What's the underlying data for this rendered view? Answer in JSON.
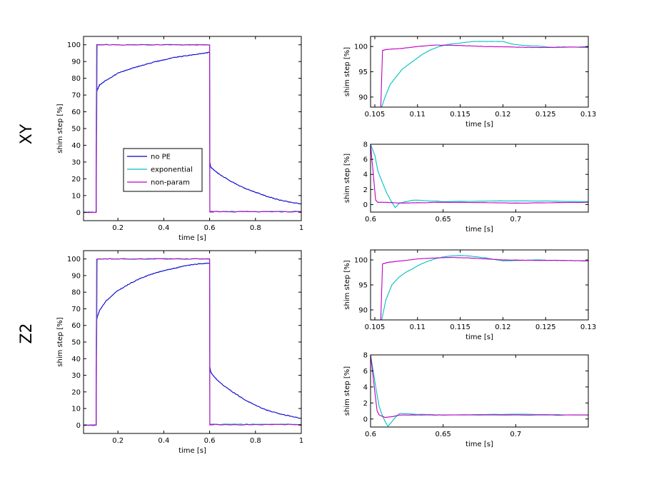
{
  "figure": {
    "row_labels": [
      "XY",
      "Z2"
    ],
    "colors": {
      "no_pe": "#0000cc",
      "exponential": "#00bfbf",
      "non_param": "#bf00bf"
    }
  },
  "chart_data": [
    {
      "id": "xy-main",
      "row": "XY",
      "type": "line",
      "title": "",
      "xlabel": "time [s]",
      "ylabel": "shim step [%]",
      "xlim": [
        0.05,
        1.0
      ],
      "ylim": [
        -5,
        105
      ],
      "xticks": [
        0.2,
        0.4,
        0.6,
        0.8,
        1
      ],
      "xtick_labels": [
        "0.2",
        "0.4",
        "0.6",
        "0.8",
        "1"
      ],
      "yticks": [
        0,
        10,
        20,
        30,
        40,
        50,
        60,
        70,
        80,
        90,
        100
      ],
      "ytick_labels": [
        "0",
        "10",
        "20",
        "30",
        "40",
        "50",
        "60",
        "70",
        "80",
        "90",
        "100"
      ],
      "legend": {
        "placement": "lower-left",
        "entries": [
          "no PE",
          "exponential",
          "non-param"
        ]
      },
      "series": [
        {
          "name": "no PE",
          "color": "#0000cc",
          "x": [
            0.05,
            0.105,
            0.106,
            0.11,
            0.12,
            0.15,
            0.2,
            0.25,
            0.3,
            0.35,
            0.4,
            0.45,
            0.5,
            0.55,
            0.6,
            0.601,
            0.605,
            0.62,
            0.65,
            0.7,
            0.75,
            0.8,
            0.85,
            0.9,
            0.95,
            1.0
          ],
          "y": [
            0,
            0,
            70,
            73,
            76,
            79,
            83,
            85.5,
            87.5,
            89.5,
            91,
            92.5,
            93.5,
            94.5,
            95.5,
            30,
            27,
            25,
            22,
            18,
            14.5,
            12,
            9.5,
            7.5,
            6,
            5
          ]
        },
        {
          "name": "exponential",
          "color": "#00bfbf",
          "x": [
            0.05,
            0.105,
            0.11,
            0.2,
            0.4,
            0.6,
            0.601,
            0.62,
            0.8,
            1.0
          ],
          "y": [
            0,
            0,
            100,
            100,
            100,
            100,
            0.5,
            0.5,
            0.5,
            0.5
          ]
        },
        {
          "name": "non-param",
          "color": "#bf00bf",
          "x": [
            0.05,
            0.105,
            0.107,
            0.2,
            0.4,
            0.6,
            0.601,
            0.62,
            0.8,
            1.0
          ],
          "y": [
            0,
            0,
            100,
            100,
            100,
            100,
            0.3,
            0.3,
            0.3,
            0.3
          ]
        }
      ]
    },
    {
      "id": "xy-rise",
      "row": "XY",
      "type": "line",
      "title": "",
      "xlabel": "time [s]",
      "ylabel": "shim step [%]",
      "xlim": [
        0.1045,
        0.13
      ],
      "ylim": [
        88,
        102
      ],
      "xticks": [
        0.105,
        0.11,
        0.115,
        0.12,
        0.125,
        0.13
      ],
      "xtick_labels": [
        "0.105",
        "0.11",
        "0.115",
        "0.12",
        "0.125",
        "0.13"
      ],
      "yticks": [
        90,
        95,
        100
      ],
      "ytick_labels": [
        "90",
        "95",
        "100"
      ],
      "series": [
        {
          "name": "exponential",
          "color": "#00bfbf",
          "x": [
            0.1058,
            0.1062,
            0.1068,
            0.1075,
            0.1082,
            0.109,
            0.1098,
            0.1106,
            0.1115,
            0.1125,
            0.1135,
            0.115,
            0.1165,
            0.118,
            0.12,
            0.121,
            0.1225,
            0.124,
            0.126,
            0.128,
            0.13
          ],
          "y": [
            88,
            90,
            92.5,
            94,
            95.5,
            96.5,
            97.5,
            98.5,
            99.3,
            100,
            100.4,
            100.7,
            101,
            101,
            101,
            100.5,
            100.2,
            100.1,
            99.8,
            99.9,
            99.8
          ]
        },
        {
          "name": "non-param",
          "color": "#bf00bf",
          "x": [
            0.1057,
            0.1059,
            0.1063,
            0.107,
            0.108,
            0.109,
            0.11,
            0.112,
            0.115,
            0.118,
            0.121,
            0.124,
            0.127,
            0.13
          ],
          "y": [
            88,
            99.2,
            99.4,
            99.5,
            99.6,
            99.8,
            100,
            100.3,
            100.2,
            100,
            99.9,
            99.8,
            99.9,
            99.9
          ]
        }
      ]
    },
    {
      "id": "xy-fall",
      "row": "XY",
      "type": "line",
      "title": "",
      "xlabel": "time [s]",
      "ylabel": "shim step [%]",
      "xlim": [
        0.6,
        0.75
      ],
      "ylim": [
        -1,
        8
      ],
      "xticks": [
        0.6,
        0.65,
        0.7
      ],
      "xtick_labels": [
        "0.6",
        "0.65",
        "0.7"
      ],
      "yticks": [
        0,
        2,
        4,
        6,
        8
      ],
      "ytick_labels": [
        "0",
        "2",
        "4",
        "6",
        "8"
      ],
      "series": [
        {
          "name": "exponential",
          "color": "#00bfbf",
          "x": [
            0.6,
            0.603,
            0.605,
            0.608,
            0.611,
            0.614,
            0.617,
            0.62,
            0.63,
            0.65,
            0.7,
            0.75
          ],
          "y": [
            8,
            6.5,
            4.5,
            3,
            1.6,
            0.5,
            -0.4,
            0.2,
            0.6,
            0.4,
            0.5,
            0.4
          ]
        },
        {
          "name": "non-param",
          "color": "#bf00bf",
          "x": [
            0.6,
            0.6035,
            0.605,
            0.61,
            0.62,
            0.65,
            0.7,
            0.75
          ],
          "y": [
            8,
            0.6,
            0.3,
            0.3,
            0.2,
            0.3,
            0.2,
            0.3
          ]
        }
      ]
    },
    {
      "id": "z2-main",
      "row": "Z2",
      "type": "line",
      "title": "",
      "xlabel": "time [s]",
      "ylabel": "shim step [%]",
      "xlim": [
        0.05,
        1.0
      ],
      "ylim": [
        -5,
        105
      ],
      "xticks": [
        0.2,
        0.4,
        0.6,
        0.8,
        1
      ],
      "xtick_labels": [
        "0.2",
        "0.4",
        "0.6",
        "0.8",
        "1"
      ],
      "yticks": [
        0,
        10,
        20,
        30,
        40,
        50,
        60,
        70,
        80,
        90,
        100
      ],
      "ytick_labels": [
        "0",
        "10",
        "20",
        "30",
        "40",
        "50",
        "60",
        "70",
        "80",
        "90",
        "100"
      ],
      "series": [
        {
          "name": "no PE",
          "color": "#0000cc",
          "x": [
            0.05,
            0.105,
            0.106,
            0.11,
            0.12,
            0.15,
            0.2,
            0.25,
            0.3,
            0.35,
            0.4,
            0.45,
            0.5,
            0.55,
            0.6,
            0.601,
            0.605,
            0.62,
            0.65,
            0.7,
            0.75,
            0.8,
            0.85,
            0.9,
            0.95,
            1.0
          ],
          "y": [
            0,
            0,
            62,
            65,
            69,
            75,
            81,
            85,
            88.5,
            91,
            93,
            94.5,
            96,
            97,
            97.5,
            35,
            32,
            29,
            25,
            20,
            15.5,
            12,
            9,
            7,
            5.5,
            4
          ]
        },
        {
          "name": "exponential",
          "color": "#00bfbf",
          "x": [
            0.05,
            0.105,
            0.11,
            0.2,
            0.4,
            0.6,
            0.601,
            0.62,
            0.8,
            1.0
          ],
          "y": [
            0,
            0,
            100,
            100,
            100,
            100,
            0.5,
            0.5,
            0.5,
            0.5
          ]
        },
        {
          "name": "non-param",
          "color": "#bf00bf",
          "x": [
            0.05,
            0.105,
            0.107,
            0.2,
            0.4,
            0.6,
            0.601,
            0.62,
            0.8,
            1.0
          ],
          "y": [
            0,
            0,
            100,
            100,
            100,
            100,
            0.3,
            0.3,
            0.3,
            0.3
          ]
        }
      ]
    },
    {
      "id": "z2-rise",
      "row": "Z2",
      "type": "line",
      "title": "",
      "xlabel": "time [s]",
      "ylabel": "shim step [%]",
      "xlim": [
        0.1045,
        0.13
      ],
      "ylim": [
        88,
        102
      ],
      "xticks": [
        0.105,
        0.11,
        0.115,
        0.12,
        0.125,
        0.13
      ],
      "xtick_labels": [
        "0.105",
        "0.11",
        "0.115",
        "0.12",
        "0.125",
        "0.13"
      ],
      "yticks": [
        90,
        95,
        100
      ],
      "ytick_labels": [
        "90",
        "95",
        "100"
      ],
      "series": [
        {
          "name": "exponential",
          "color": "#00bfbf",
          "x": [
            0.1058,
            0.1063,
            0.107,
            0.1078,
            0.1086,
            0.1094,
            0.1102,
            0.111,
            0.112,
            0.113,
            0.114,
            0.115,
            0.116,
            0.117,
            0.118,
            0.119,
            0.12,
            0.122,
            0.124,
            0.127,
            0.13
          ],
          "y": [
            88,
            92,
            95,
            96.5,
            97.5,
            98.2,
            99,
            99.6,
            100.2,
            100.6,
            100.8,
            100.9,
            100.8,
            100.6,
            100.4,
            100.1,
            99.8,
            99.9,
            100,
            99.9,
            99.8
          ]
        },
        {
          "name": "non-param",
          "color": "#bf00bf",
          "x": [
            0.1057,
            0.1059,
            0.1065,
            0.107,
            0.108,
            0.11,
            0.112,
            0.114,
            0.116,
            0.118,
            0.12,
            0.124,
            0.127,
            0.13
          ],
          "y": [
            88,
            99.2,
            99.5,
            99.6,
            99.8,
            100.2,
            100.4,
            100.5,
            100.4,
            100.2,
            100,
            99.9,
            99.9,
            99.8
          ]
        }
      ]
    },
    {
      "id": "z2-fall",
      "row": "Z2",
      "type": "line",
      "title": "",
      "xlabel": "time [s]",
      "ylabel": "shim step [%]",
      "xlim": [
        0.6,
        0.75
      ],
      "ylim": [
        -1,
        8
      ],
      "xticks": [
        0.6,
        0.65,
        0.7
      ],
      "xtick_labels": [
        "0.6",
        "0.65",
        "0.7"
      ],
      "yticks": [
        0,
        2,
        4,
        6,
        8
      ],
      "ytick_labels": [
        "0",
        "2",
        "4",
        "6",
        "8"
      ],
      "series": [
        {
          "name": "exponential",
          "color": "#00bfbf",
          "x": [
            0.6,
            0.6045,
            0.606,
            0.608,
            0.61,
            0.612,
            0.614,
            0.616,
            0.62,
            0.63,
            0.65,
            0.7,
            0.75
          ],
          "y": [
            8,
            3,
            1.5,
            0.5,
            -0.3,
            -0.9,
            -0.5,
            0,
            0.7,
            0.6,
            0.5,
            0.6,
            0.5
          ]
        },
        {
          "name": "non-param",
          "color": "#bf00bf",
          "x": [
            0.6,
            0.6045,
            0.606,
            0.61,
            0.615,
            0.62,
            0.65,
            0.7,
            0.75
          ],
          "y": [
            8,
            1,
            0.5,
            0.2,
            0.3,
            0.5,
            0.5,
            0.5,
            0.5
          ]
        }
      ]
    }
  ]
}
